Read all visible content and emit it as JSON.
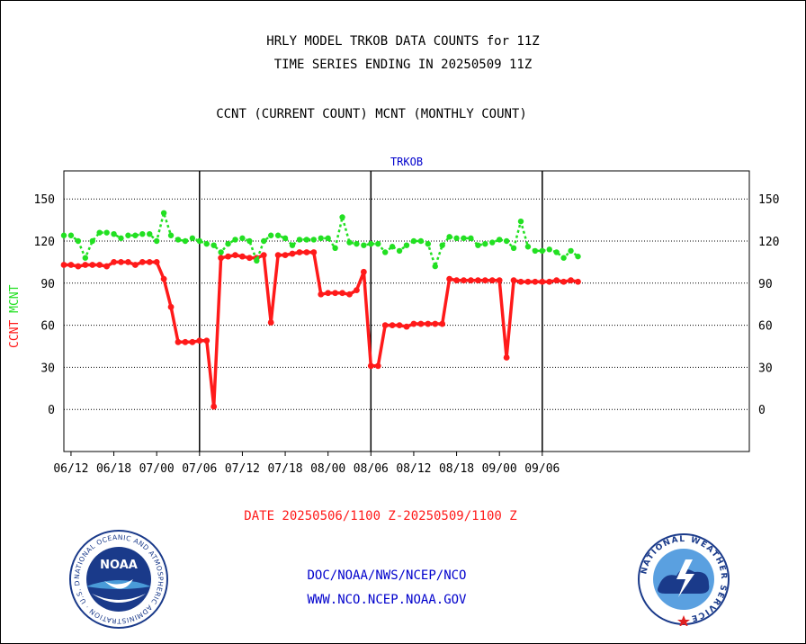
{
  "header": {
    "title1": "HRLY MODEL TRKOB DATA COUNTS for 11Z",
    "title2": "TIME SERIES ENDING IN 20250509 11Z",
    "subtitle": "CCNT (CURRENT COUNT) MCNT (MONTHLY COUNT)"
  },
  "footer": {
    "date_range": "DATE 20250506/1100 Z-20250509/1100 Z",
    "org_line": "DOC/NOAA/NWS/NCEP/NCO",
    "url_line": "WWW.NCO.NCEP.NOAA.GOV"
  },
  "logos": {
    "noaa_text": "NOAA",
    "noaa_ring": "NATIONAL OCEANIC AND ATMOSPHERIC ADMINISTRATION · U.S. DEPARTMENT OF COMMERCE ·",
    "nws_ring": "NATIONAL WEATHER SERVICE"
  },
  "colors": {
    "ccnt": "#ff1a1a",
    "mcnt": "#22e022",
    "axis": "#000000",
    "plot_title": "#0000cc",
    "date_range": "#ff1a1a"
  },
  "chart_data": {
    "type": "line",
    "title": "TRKOB",
    "ylabel_left_1": "CCNT",
    "ylabel_left_2": "MCNT",
    "ylim": [
      -30,
      170
    ],
    "xlim": [
      0,
      96
    ],
    "y_ticks": [
      0,
      30,
      60,
      90,
      120,
      150
    ],
    "x_tick_labels": [
      "06/12",
      "06/18",
      "07/00",
      "07/06",
      "07/12",
      "07/18",
      "08/00",
      "08/06",
      "08/12",
      "08/18",
      "09/00",
      "09/06"
    ],
    "x_tick_positions": [
      1,
      7,
      13,
      19,
      25,
      31,
      37,
      43,
      49,
      55,
      61,
      67
    ],
    "day_boundaries": [
      19,
      43,
      67
    ],
    "x": [
      0,
      1,
      2,
      3,
      4,
      5,
      6,
      7,
      8,
      9,
      10,
      11,
      12,
      13,
      14,
      15,
      16,
      17,
      18,
      19,
      20,
      21,
      22,
      23,
      24,
      25,
      26,
      27,
      28,
      29,
      30,
      31,
      32,
      33,
      34,
      35,
      36,
      37,
      38,
      39,
      40,
      41,
      42,
      43,
      44,
      45,
      46,
      47,
      48,
      49,
      50,
      51,
      52,
      53,
      54,
      55,
      56,
      57,
      58,
      59,
      60,
      61,
      62,
      63,
      64,
      65,
      66,
      67,
      68,
      69,
      70,
      71,
      72
    ],
    "series": [
      {
        "name": "CCNT",
        "values": [
          103,
          103,
          102,
          103,
          103,
          103,
          102,
          105,
          105,
          105,
          103,
          105,
          105,
          105,
          93,
          73,
          48,
          48,
          48,
          49,
          49,
          2,
          108,
          109,
          110,
          109,
          108,
          108,
          110,
          62,
          110,
          110,
          111,
          112,
          112,
          112,
          82,
          83,
          83,
          83,
          82,
          85,
          98,
          31,
          31,
          60,
          60,
          60,
          59,
          61,
          61,
          61,
          61,
          61,
          93,
          92,
          92,
          92,
          92,
          92,
          92,
          92,
          37,
          92,
          91,
          91,
          91,
          91,
          91,
          92,
          91,
          92,
          91
        ]
      },
      {
        "name": "MCNT",
        "values": [
          124,
          124,
          120,
          108,
          120,
          126,
          126,
          125,
          122,
          124,
          124,
          125,
          125,
          120,
          140,
          124,
          121,
          120,
          122,
          120,
          118,
          117,
          112,
          118,
          121,
          122,
          120,
          106,
          120,
          124,
          124,
          122,
          117,
          121,
          121,
          121,
          122,
          122,
          115,
          137,
          119,
          118,
          117,
          118,
          118,
          112,
          116,
          113,
          117,
          120,
          120,
          118,
          102,
          117,
          123,
          122,
          122,
          122,
          117,
          118,
          119,
          121,
          120,
          115,
          134,
          116,
          113,
          113,
          114,
          112,
          108,
          113,
          109
        ]
      }
    ]
  }
}
